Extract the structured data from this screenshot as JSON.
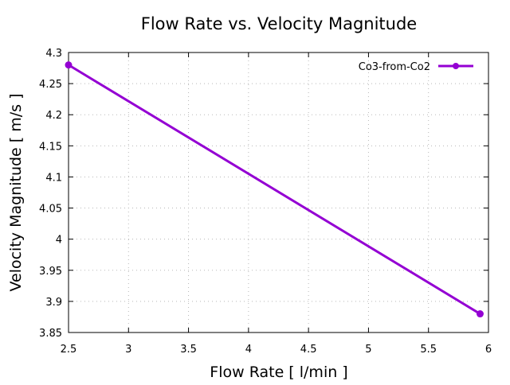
{
  "chart_data": {
    "type": "line",
    "title": "Flow Rate vs. Velocity Magnitude",
    "xlabel": "Flow Rate [ l/min ]",
    "ylabel": "Velocity Magnitude [ m/s ]",
    "xlim": [
      2.5,
      6
    ],
    "ylim": [
      3.85,
      4.3
    ],
    "xticks": [
      2.5,
      3,
      3.5,
      4,
      4.5,
      5,
      5.5,
      6
    ],
    "xtick_labels": [
      "2.5",
      "3",
      "3.5",
      "4",
      "4.5",
      "5",
      "5.5",
      "6"
    ],
    "yticks": [
      3.85,
      3.9,
      3.95,
      4,
      4.05,
      4.1,
      4.15,
      4.2,
      4.25,
      4.3
    ],
    "ytick_labels": [
      "3.85",
      "3.9",
      "3.95",
      "4",
      "4.05",
      "4.1",
      "4.15",
      "4.2",
      "4.25",
      "4.3"
    ],
    "grid": true,
    "legend_position": "top-right",
    "series": [
      {
        "name": "Co3-from-Co2",
        "color": "#9400d3",
        "x": [
          2.5,
          5.93
        ],
        "y": [
          4.28,
          3.88
        ]
      }
    ]
  }
}
